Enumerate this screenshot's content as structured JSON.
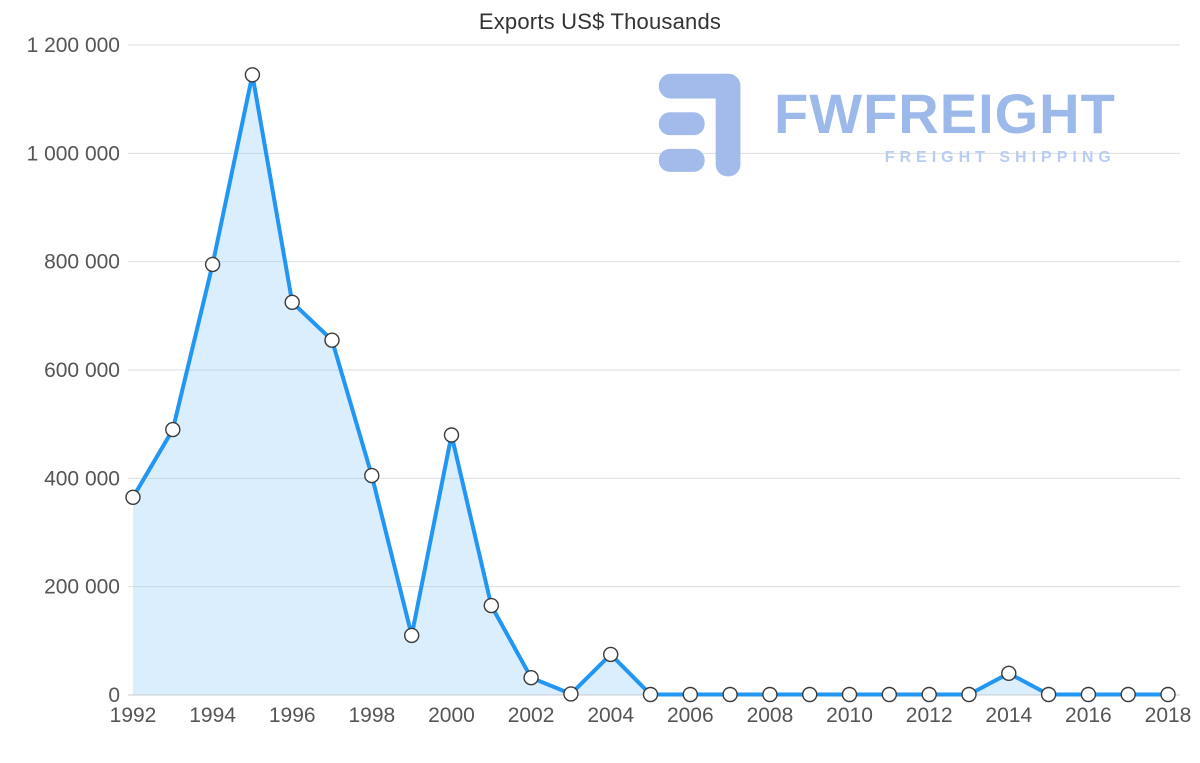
{
  "chart_data": {
    "type": "area",
    "title": "Exports US$ Thousands",
    "series_name": "Exports US$ Thousands",
    "x": [
      1992,
      1993,
      1994,
      1995,
      1996,
      1997,
      1998,
      1999,
      2000,
      2001,
      2002,
      2003,
      2004,
      2005,
      2006,
      2007,
      2008,
      2009,
      2010,
      2011,
      2012,
      2013,
      2014,
      2015,
      2016,
      2017,
      2018
    ],
    "values": [
      365000,
      490000,
      795000,
      1145000,
      725000,
      655000,
      405000,
      110000,
      480000,
      165000,
      32000,
      2000,
      75000,
      1000,
      1000,
      1000,
      1000,
      1000,
      1000,
      1000,
      1000,
      1000,
      40000,
      1000,
      1000,
      1000,
      1000
    ],
    "xlabel": "",
    "ylabel": "",
    "ylim": [
      0,
      1200000
    ],
    "yticks": [
      0,
      200000,
      400000,
      600000,
      800000,
      1000000,
      1200000
    ],
    "xticks": [
      1992,
      1994,
      1996,
      1998,
      2000,
      2002,
      2004,
      2006,
      2008,
      2010,
      2012,
      2014,
      2016,
      2018
    ],
    "grid": "horizontal",
    "legend": "none",
    "colors": {
      "line": "#2196f3",
      "fill": "rgba(144,202,249,0.32)",
      "marker_fill": "#ffffff",
      "marker_stroke": "#3a3a3a",
      "grid": "#dddddd",
      "tick_text": "#555555",
      "title_text": "#333333"
    }
  },
  "logo": {
    "text": "FWFREIGHT",
    "subtitle": "FREIGHT SHIPPING",
    "color": "#9db9ea"
  }
}
